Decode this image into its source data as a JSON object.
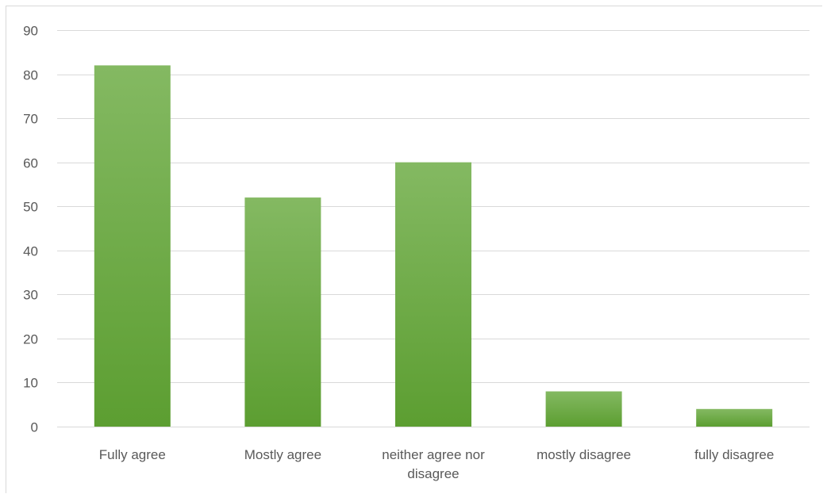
{
  "chart_data": {
    "type": "bar",
    "title": "",
    "xlabel": "",
    "ylabel": "",
    "categories": [
      [
        "Fully agree"
      ],
      [
        "Mostly agree"
      ],
      [
        "neither agree nor",
        "disagree"
      ],
      [
        "mostly disagree"
      ],
      [
        "fully disagree"
      ]
    ],
    "values": [
      82,
      52,
      60,
      8,
      4
    ],
    "ylim": [
      0,
      90
    ],
    "yticks": [
      0,
      10,
      20,
      30,
      40,
      50,
      60,
      70,
      80,
      90
    ],
    "grid": true,
    "legend": "none",
    "colors": {
      "bar_top": "#84b962",
      "bar_bottom": "#5c9e31",
      "grid": "#d9d9d9",
      "text": "#595959"
    }
  }
}
